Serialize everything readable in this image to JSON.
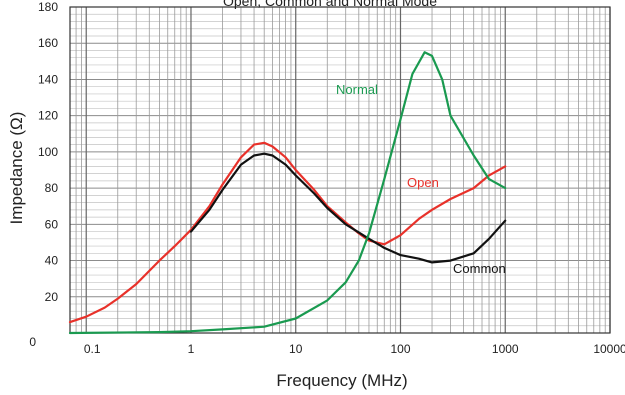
{
  "chart_data": {
    "type": "line",
    "title": "Open, Common and Normal Mode",
    "xlabel": "Frequency (MHz)",
    "ylabel": "Impedance (Ω)",
    "xscale": "log",
    "xlim": [
      0.07,
      10000
    ],
    "ylim": [
      0,
      180
    ],
    "grid": true,
    "legend": "none (inline series labels)",
    "x_tick_labels": [
      {
        "value": 0.1,
        "label": "0.1"
      },
      {
        "value": 1,
        "label": "1"
      },
      {
        "value": 10,
        "label": "10"
      },
      {
        "value": 100,
        "label": "100"
      },
      {
        "value": 1000,
        "label": "1000"
      },
      {
        "value": 10000,
        "label": "10000"
      }
    ],
    "y_tick_labels": [
      {
        "value": 0,
        "label": "0"
      },
      {
        "value": 20,
        "label": "20"
      },
      {
        "value": 40,
        "label": "40"
      },
      {
        "value": 60,
        "label": "60"
      },
      {
        "value": 80,
        "label": "80"
      },
      {
        "value": 100,
        "label": "100"
      },
      {
        "value": 120,
        "label": "120"
      },
      {
        "value": 140,
        "label": "140"
      },
      {
        "value": 160,
        "label": "160"
      },
      {
        "value": 180,
        "label": "180"
      }
    ],
    "series": [
      {
        "name": "Open",
        "color": "#e8312a",
        "points": [
          [
            0.07,
            6
          ],
          [
            0.1,
            9
          ],
          [
            0.15,
            14
          ],
          [
            0.2,
            19
          ],
          [
            0.3,
            27
          ],
          [
            0.5,
            40
          ],
          [
            0.7,
            48
          ],
          [
            1,
            57
          ],
          [
            1.5,
            70
          ],
          [
            2,
            82
          ],
          [
            3,
            97
          ],
          [
            4,
            104
          ],
          [
            5,
            105
          ],
          [
            6,
            103
          ],
          [
            8,
            97
          ],
          [
            10,
            90
          ],
          [
            15,
            79
          ],
          [
            20,
            70
          ],
          [
            30,
            61
          ],
          [
            40,
            55
          ],
          [
            50,
            51
          ],
          [
            70,
            49
          ],
          [
            100,
            54
          ],
          [
            150,
            63
          ],
          [
            200,
            68
          ],
          [
            300,
            74
          ],
          [
            500,
            80
          ],
          [
            700,
            87
          ],
          [
            1000,
            92
          ]
        ]
      },
      {
        "name": "Common",
        "color": "#111111",
        "points": [
          [
            1,
            56
          ],
          [
            1.5,
            68
          ],
          [
            2,
            79
          ],
          [
            3,
            93
          ],
          [
            4,
            98
          ],
          [
            5,
            99
          ],
          [
            6,
            98
          ],
          [
            8,
            93
          ],
          [
            10,
            87
          ],
          [
            15,
            77
          ],
          [
            20,
            69
          ],
          [
            30,
            60
          ],
          [
            50,
            52
          ],
          [
            70,
            47
          ],
          [
            100,
            43
          ],
          [
            150,
            41
          ],
          [
            200,
            39
          ],
          [
            300,
            40
          ],
          [
            500,
            44
          ],
          [
            700,
            52
          ],
          [
            1000,
            62
          ]
        ]
      },
      {
        "name": "Normal",
        "color": "#1a9a50",
        "points": [
          [
            0.07,
            0
          ],
          [
            0.5,
            0.5
          ],
          [
            1,
            1
          ],
          [
            2,
            2
          ],
          [
            5,
            3.5
          ],
          [
            10,
            8
          ],
          [
            20,
            18
          ],
          [
            30,
            28
          ],
          [
            40,
            40
          ],
          [
            50,
            55
          ],
          [
            70,
            85
          ],
          [
            100,
            118
          ],
          [
            130,
            143
          ],
          [
            170,
            155
          ],
          [
            200,
            153
          ],
          [
            250,
            140
          ],
          [
            300,
            120
          ],
          [
            500,
            98
          ],
          [
            700,
            85
          ],
          [
            1000,
            80
          ]
        ]
      }
    ],
    "annotations": [
      {
        "text": "Normal",
        "series": "Normal"
      },
      {
        "text": "Open",
        "series": "Open"
      },
      {
        "text": "Common",
        "series": "Common"
      }
    ]
  }
}
